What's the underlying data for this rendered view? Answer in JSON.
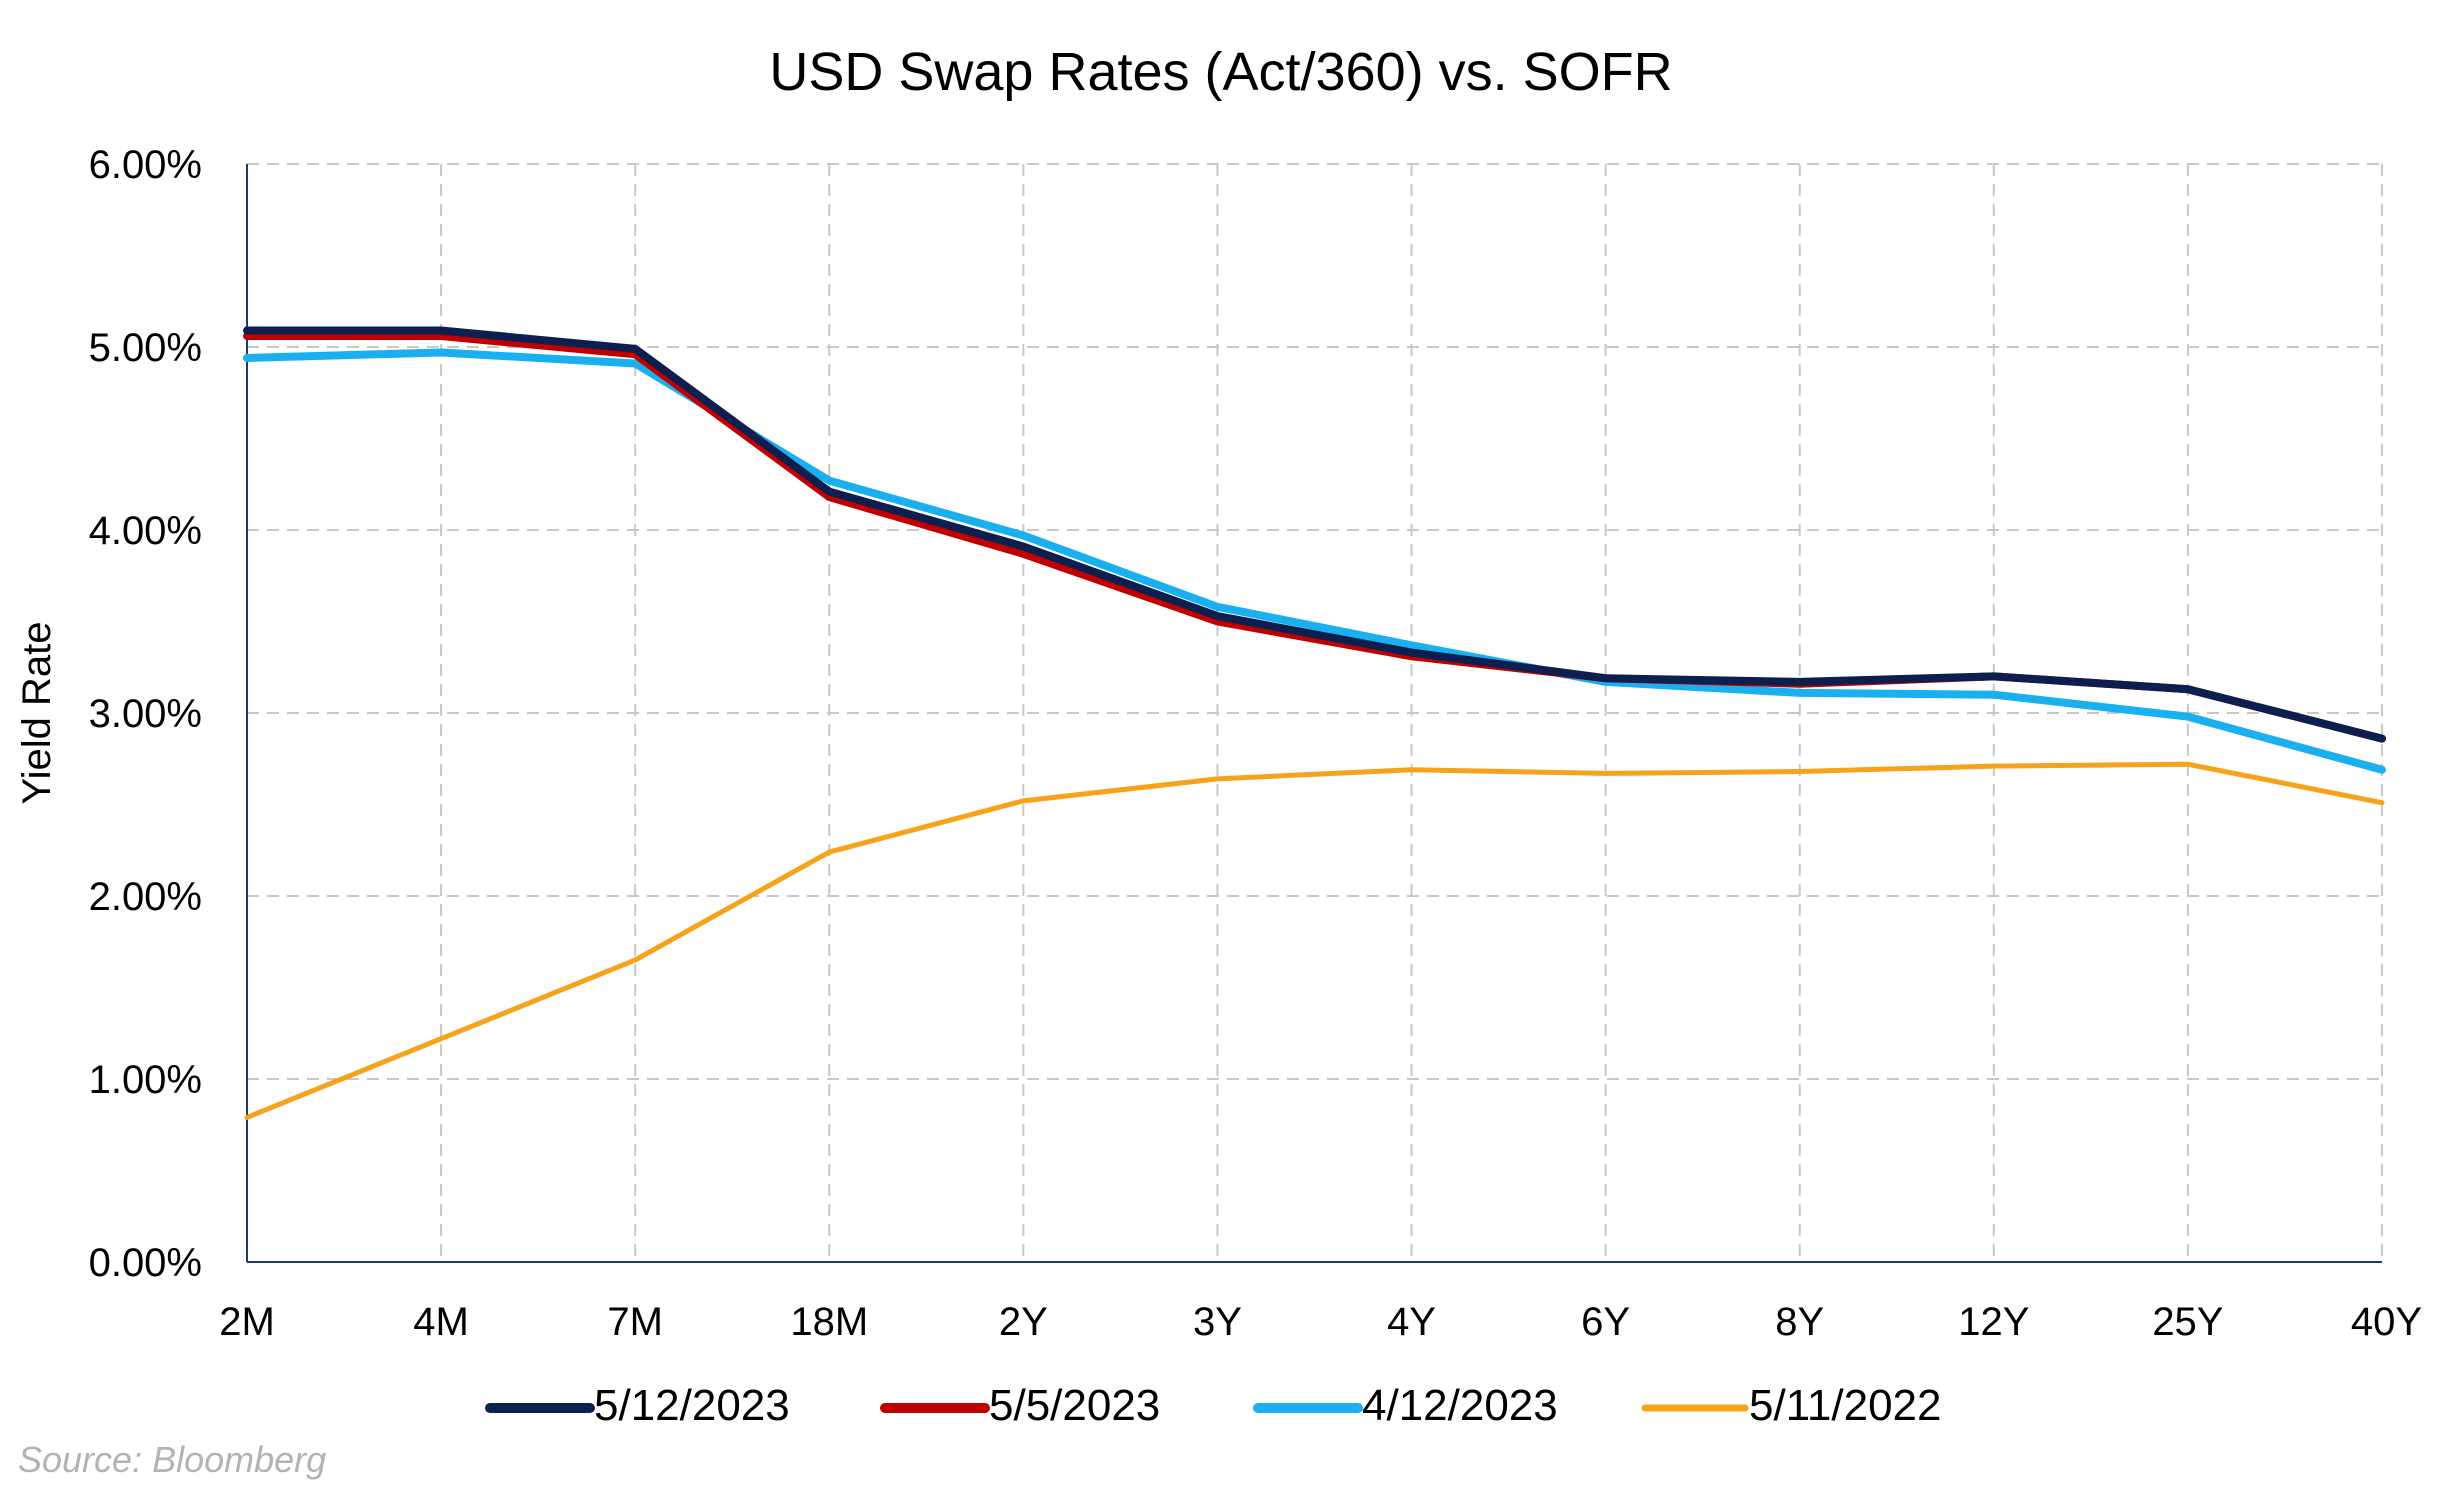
{
  "source": "Source: Bloomberg",
  "chart_data": {
    "type": "line",
    "title": "USD Swap Rates (Act/360) vs. SOFR",
    "xlabel": "",
    "ylabel": "Yield Rate",
    "categories": [
      "2M",
      "4M",
      "7M",
      "18M",
      "2Y",
      "3Y",
      "4Y",
      "6Y",
      "8Y",
      "12Y",
      "25Y",
      "40Y"
    ],
    "ylim": [
      0,
      6
    ],
    "yticks": [
      "0.00%",
      "1.00%",
      "2.00%",
      "3.00%",
      "4.00%",
      "5.00%",
      "6.00%"
    ],
    "grid": true,
    "legend": "bottom",
    "series": [
      {
        "name": "5/12/2023",
        "color": "#0d1f4f",
        "values": [
          5.09,
          5.09,
          4.99,
          4.21,
          3.91,
          3.53,
          3.33,
          3.19,
          3.17,
          3.2,
          3.13,
          2.86
        ]
      },
      {
        "name": "5/5/2023",
        "color": "#c00000",
        "values": [
          5.06,
          5.06,
          4.96,
          4.18,
          3.87,
          3.5,
          3.31,
          3.19,
          3.16,
          3.2,
          3.13,
          2.86
        ]
      },
      {
        "name": "4/12/2023",
        "color": "#1ab0f0",
        "values": [
          4.94,
          4.97,
          4.91,
          4.27,
          3.97,
          3.58,
          3.37,
          3.17,
          3.11,
          3.1,
          2.98,
          2.69
        ]
      },
      {
        "name": "5/11/2022",
        "color": "#f7a21b",
        "values": [
          0.79,
          1.22,
          1.65,
          2.24,
          2.52,
          2.64,
          2.69,
          2.67,
          2.68,
          2.71,
          2.72,
          2.51
        ]
      }
    ]
  }
}
